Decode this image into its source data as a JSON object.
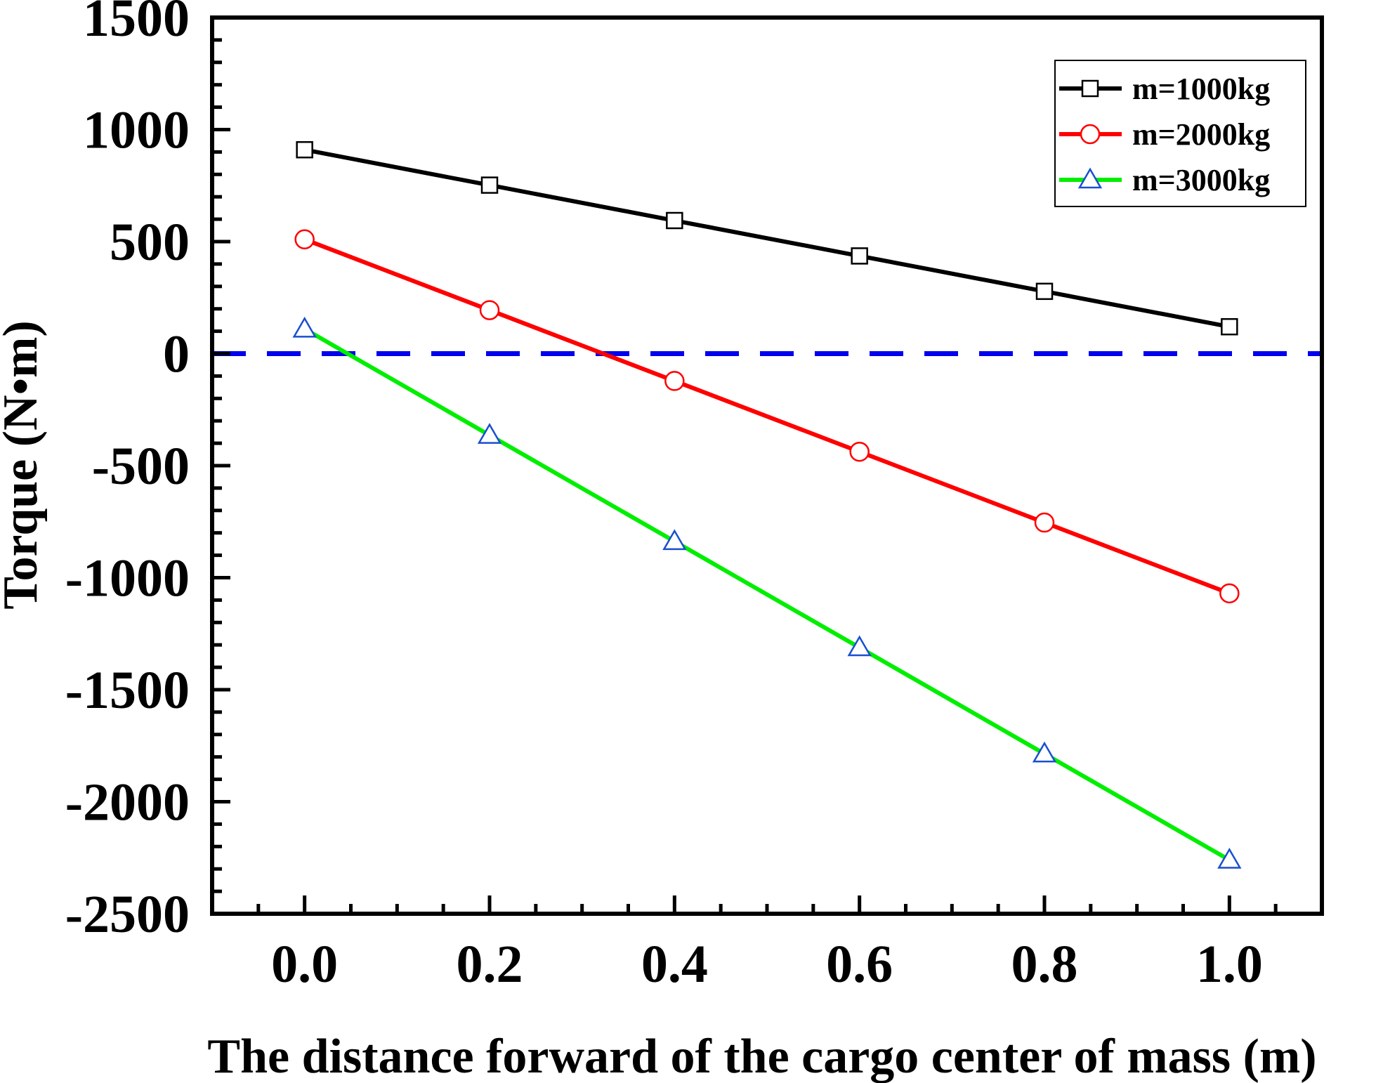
{
  "chart_data": {
    "type": "line",
    "title": "",
    "xlabel": "The distance forward of the cargo center of mass (m)",
    "ylabel": "Torque (N•m)",
    "xlim": [
      -0.1,
      1.1
    ],
    "ylim": [
      -2500,
      1500
    ],
    "x_ticks": [
      "0.0",
      "0.2",
      "0.4",
      "0.6",
      "0.8",
      "1.0"
    ],
    "y_ticks": [
      "1500",
      "1000",
      "500",
      "0",
      "-500",
      "-1000",
      "-1500",
      "-2000",
      "-2500"
    ],
    "x": [
      0.0,
      0.2,
      0.4,
      0.6,
      0.8,
      1.0
    ],
    "series": [
      {
        "name": "m=1000kg",
        "values": [
          910,
          752,
          594,
          436,
          278,
          120
        ],
        "color": "#000000",
        "marker": "square"
      },
      {
        "name": "m=2000kg",
        "values": [
          510,
          194,
          -122,
          -438,
          -754,
          -1070
        ],
        "color": "#ff0000",
        "marker": "circle"
      },
      {
        "name": "m=3000kg",
        "values": [
          110,
          -364,
          -838,
          -1312,
          -1786,
          -2260
        ],
        "color": "#00ee00",
        "marker": "triangle"
      }
    ],
    "reference_line": {
      "y": 0,
      "style": "dashed",
      "color": "#0000ee"
    },
    "legend_position": "top-right",
    "grid": false
  }
}
